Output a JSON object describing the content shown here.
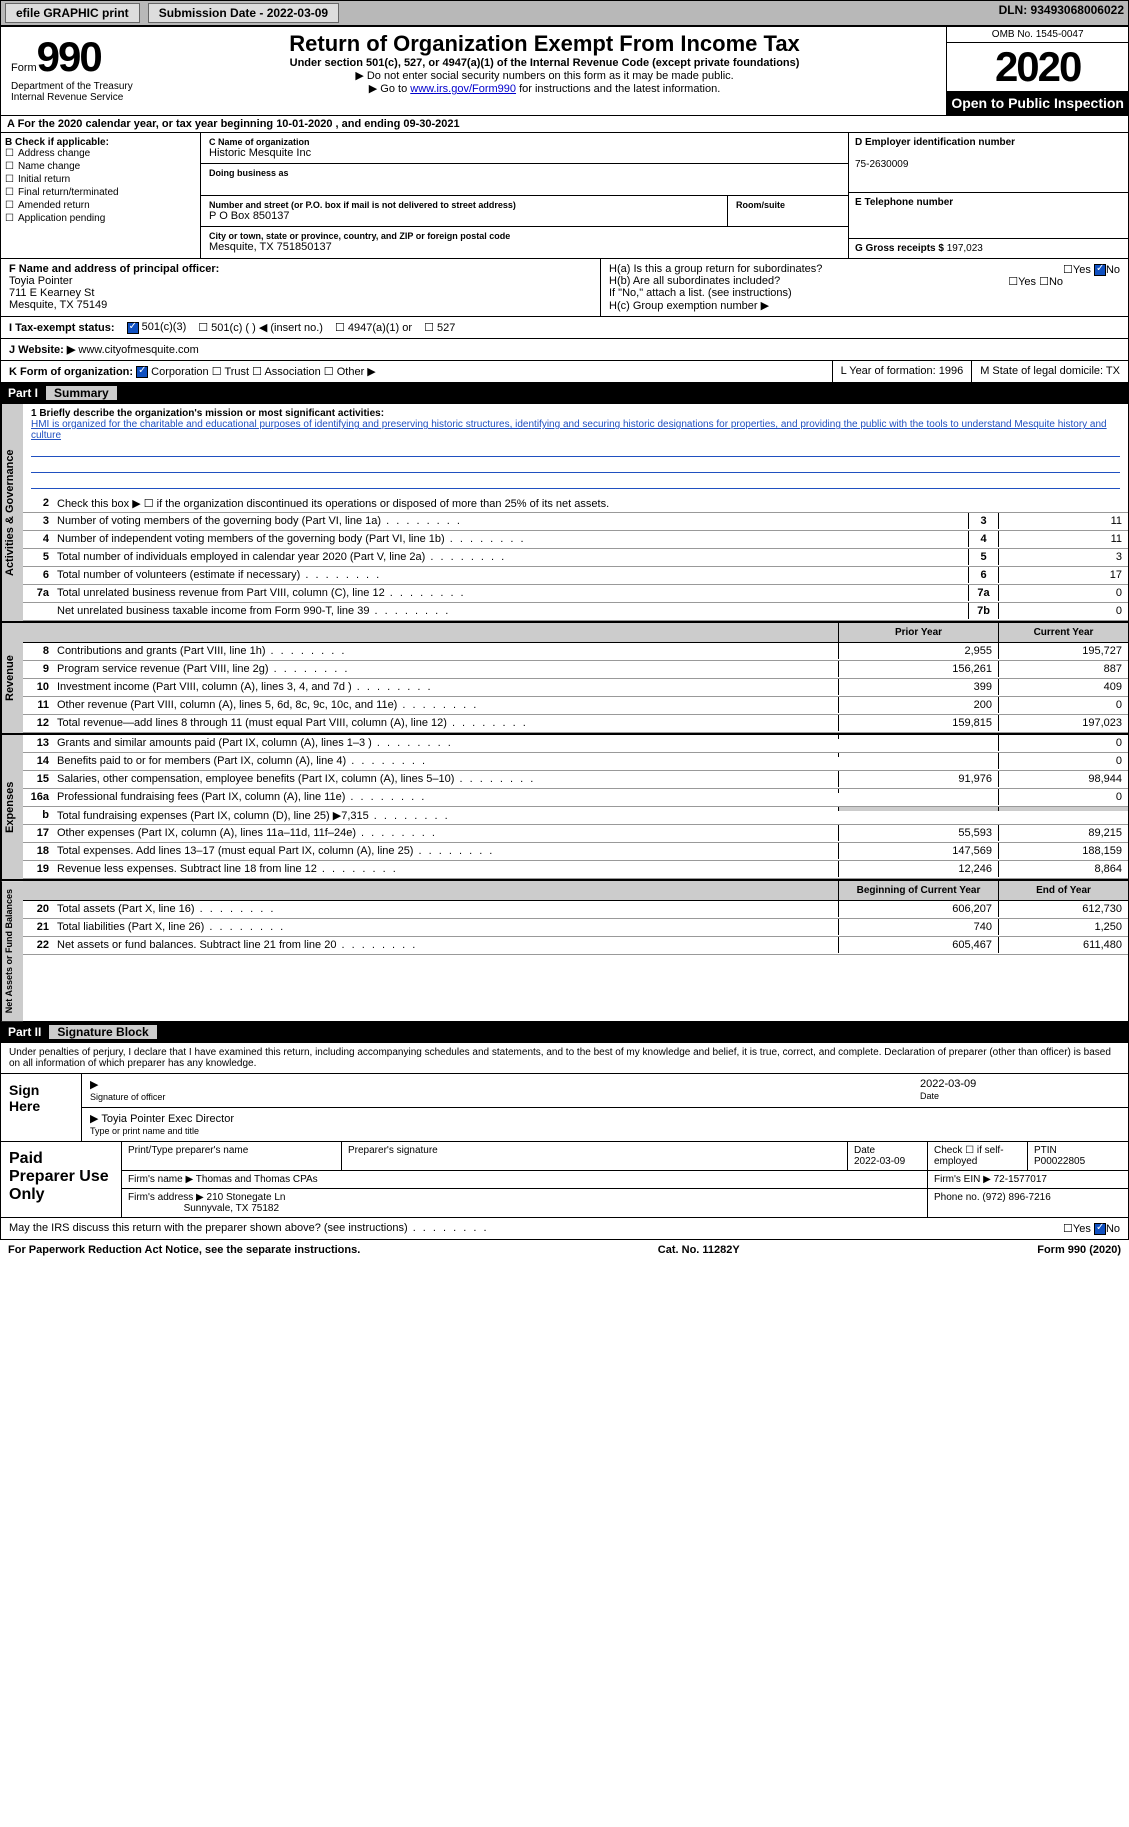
{
  "topbar": {
    "efile": "efile GRAPHIC print",
    "submission": "Submission Date - 2022-03-09",
    "dln": "DLN: 93493068006022"
  },
  "header": {
    "form_word": "Form",
    "form_num": "990",
    "title": "Return of Organization Exempt From Income Tax",
    "subtitle": "Under section 501(c), 527, or 4947(a)(1) of the Internal Revenue Code (except private foundations)",
    "note1": "▶ Do not enter social security numbers on this form as it may be made public.",
    "note2a": "▶ Go to ",
    "note2_link": "www.irs.gov/Form990",
    "note2b": " for instructions and the latest information.",
    "omb": "OMB No. 1545-0047",
    "year": "2020",
    "open": "Open to Public Inspection",
    "dept1": "Department of the Treasury",
    "dept2": "Internal Revenue Service"
  },
  "period": "A For the 2020 calendar year, or tax year beginning 10-01-2020     , and ending 09-30-2021",
  "sectionB": {
    "label": "B Check if applicable:",
    "items": [
      "Address change",
      "Name change",
      "Initial return",
      "Final return/terminated",
      "Amended return",
      "Application pending"
    ]
  },
  "sectionC": {
    "name_label": "C Name of organization",
    "name": "Historic Mesquite Inc",
    "dba_label": "Doing business as",
    "addr_label": "Number and street (or P.O. box if mail is not delivered to street address)",
    "room_label": "Room/suite",
    "addr": "P O Box 850137",
    "city_label": "City or town, state or province, country, and ZIP or foreign postal code",
    "city": "Mesquite, TX  751850137"
  },
  "sectionD": {
    "label": "D Employer identification number",
    "ein": "75-2630009"
  },
  "sectionE": {
    "label": "E Telephone number"
  },
  "sectionG": {
    "label": "G Gross receipts $",
    "val": "197,023"
  },
  "sectionF": {
    "label": "F Name and address of principal officer:",
    "name": "Toyia Pointer",
    "addr1": "711 E Kearney St",
    "addr2": "Mesquite, TX  75149"
  },
  "sectionH": {
    "a": "H(a)  Is this a group return for subordinates?",
    "b": "H(b)  Are all subordinates included?",
    "note": "If \"No,\" attach a list. (see instructions)",
    "c": "H(c)  Group exemption number ▶",
    "yes": "Yes",
    "no": "No"
  },
  "taxexempt": {
    "label": "I    Tax-exempt status:",
    "o1": "501(c)(3)",
    "o2": "501(c) (   ) ◀ (insert no.)",
    "o3": "4947(a)(1) or",
    "o4": "527"
  },
  "website": {
    "label": "J    Website: ▶",
    "val": "www.cityofmesquite.com"
  },
  "formorg": {
    "label": "K Form of organization:",
    "o1": "Corporation",
    "o2": "Trust",
    "o3": "Association",
    "o4": "Other ▶",
    "l": "L Year of formation: 1996",
    "m": "M State of legal domicile: TX"
  },
  "part1": {
    "num": "Part I",
    "title": "Summary"
  },
  "mission": {
    "label": "1   Briefly describe the organization's mission or most significant activities:",
    "text": "HMI is organized for the charitable and educational purposes of identifying and preserving historic structures, identifying and securing historic designations for properties, and providing the public with the tools to understand Mesquite history and culture"
  },
  "lines_gov": [
    {
      "n": "2",
      "d": "Check this box ▶ ☐  if the organization discontinued its operations or disposed of more than 25% of its net assets."
    },
    {
      "n": "3",
      "d": "Number of voting members of the governing body (Part VI, line 1a)",
      "b": "3",
      "v": "11"
    },
    {
      "n": "4",
      "d": "Number of independent voting members of the governing body (Part VI, line 1b)",
      "b": "4",
      "v": "11"
    },
    {
      "n": "5",
      "d": "Total number of individuals employed in calendar year 2020 (Part V, line 2a)",
      "b": "5",
      "v": "3"
    },
    {
      "n": "6",
      "d": "Total number of volunteers (estimate if necessary)",
      "b": "6",
      "v": "17"
    },
    {
      "n": "7a",
      "d": "Total unrelated business revenue from Part VIII, column (C), line 12",
      "b": "7a",
      "v": "0"
    },
    {
      "n": "",
      "d": "Net unrelated business taxable income from Form 990-T, line 39",
      "b": "7b",
      "v": "0"
    }
  ],
  "tbl_head": {
    "prior": "Prior Year",
    "current": "Current Year"
  },
  "lines_rev": [
    {
      "n": "8",
      "d": "Contributions and grants (Part VIII, line 1h)",
      "p": "2,955",
      "c": "195,727"
    },
    {
      "n": "9",
      "d": "Program service revenue (Part VIII, line 2g)",
      "p": "156,261",
      "c": "887"
    },
    {
      "n": "10",
      "d": "Investment income (Part VIII, column (A), lines 3, 4, and 7d )",
      "p": "399",
      "c": "409"
    },
    {
      "n": "11",
      "d": "Other revenue (Part VIII, column (A), lines 5, 6d, 8c, 9c, 10c, and 11e)",
      "p": "200",
      "c": "0"
    },
    {
      "n": "12",
      "d": "Total revenue—add lines 8 through 11 (must equal Part VIII, column (A), line 12)",
      "p": "159,815",
      "c": "197,023"
    }
  ],
  "lines_exp": [
    {
      "n": "13",
      "d": "Grants and similar amounts paid (Part IX, column (A), lines 1–3 )",
      "p": "",
      "c": "0"
    },
    {
      "n": "14",
      "d": "Benefits paid to or for members (Part IX, column (A), line 4)",
      "p": "",
      "c": "0"
    },
    {
      "n": "15",
      "d": "Salaries, other compensation, employee benefits (Part IX, column (A), lines 5–10)",
      "p": "91,976",
      "c": "98,944"
    },
    {
      "n": "16a",
      "d": "Professional fundraising fees (Part IX, column (A), line 11e)",
      "p": "",
      "c": "0"
    },
    {
      "n": "b",
      "d": "Total fundraising expenses (Part IX, column (D), line 25) ▶7,315",
      "p": "shaded",
      "c": "shaded"
    },
    {
      "n": "17",
      "d": "Other expenses (Part IX, column (A), lines 11a–11d, 11f–24e)",
      "p": "55,593",
      "c": "89,215"
    },
    {
      "n": "18",
      "d": "Total expenses. Add lines 13–17 (must equal Part IX, column (A), line 25)",
      "p": "147,569",
      "c": "188,159"
    },
    {
      "n": "19",
      "d": "Revenue less expenses. Subtract line 18 from line 12",
      "p": "12,246",
      "c": "8,864"
    }
  ],
  "tbl_head2": {
    "prior": "Beginning of Current Year",
    "current": "End of Year"
  },
  "lines_net": [
    {
      "n": "20",
      "d": "Total assets (Part X, line 16)",
      "p": "606,207",
      "c": "612,730"
    },
    {
      "n": "21",
      "d": "Total liabilities (Part X, line 26)",
      "p": "740",
      "c": "1,250"
    },
    {
      "n": "22",
      "d": "Net assets or fund balances. Subtract line 21 from line 20",
      "p": "605,467",
      "c": "611,480"
    }
  ],
  "vtabs": {
    "gov": "Activities & Governance",
    "rev": "Revenue",
    "exp": "Expenses",
    "net": "Net Assets or Fund Balances"
  },
  "part2": {
    "num": "Part II",
    "title": "Signature Block"
  },
  "sig_decl": "Under penalties of perjury, I declare that I have examined this return, including accompanying schedules and statements, and to the best of my knowledge and belief, it is true, correct, and complete. Declaration of preparer (other than officer) is based on all information of which preparer has any knowledge.",
  "sign": {
    "here": "Sign Here",
    "sig_label": "Signature of officer",
    "date": "2022-03-09",
    "date_label": "Date",
    "name": "Toyia Pointer  Exec Director",
    "name_label": "Type or print name and title"
  },
  "prep": {
    "title": "Paid Preparer Use Only",
    "h1": "Print/Type preparer's name",
    "h2": "Preparer's signature",
    "h3": "Date",
    "h4": "Check ☐ if self-employed",
    "h5": "PTIN",
    "date": "2022-03-09",
    "ptin": "P00022805",
    "firm_label": "Firm's name    ▶",
    "firm": "Thomas and Thomas CPAs",
    "ein_label": "Firm's EIN ▶",
    "ein": "72-1577017",
    "addr_label": "Firm's address ▶",
    "addr": "210 Stonegate Ln",
    "addr2": "Sunnyvale, TX  75182",
    "phone_label": "Phone no.",
    "phone": "(972) 896-7216"
  },
  "discuss": {
    "q": "May the IRS discuss this return with the preparer shown above? (see instructions)",
    "yes": "Yes",
    "no": "No"
  },
  "footer": {
    "l": "For Paperwork Reduction Act Notice, see the separate instructions.",
    "c": "Cat. No. 11282Y",
    "r": "Form 990 (2020)"
  }
}
